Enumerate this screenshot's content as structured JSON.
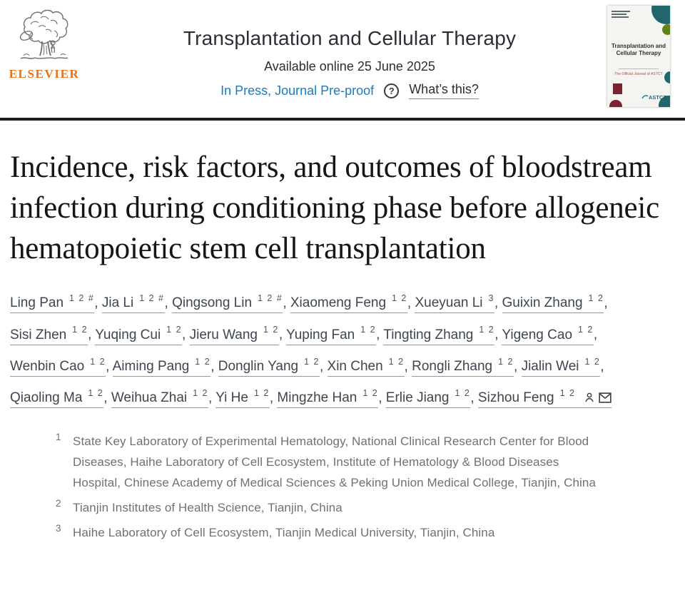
{
  "header": {
    "publisher": "ELSEVIER",
    "journal_title": "Transplantation and Cellular Therapy",
    "available_online": "Available online 25 June 2025",
    "in_press_label": "In Press, Journal Pre-proof",
    "whats_this_label": "What’s this?",
    "help_glyph": "?",
    "icons": {
      "help": "question-circle",
      "corresponding_author": "person-outline",
      "email": "envelope"
    },
    "cover": {
      "title_line1": "Transplantation and",
      "title_line2": "Cellular Therapy",
      "subtitle": "The Official Journal of ASTCT",
      "society": "ASTCT"
    },
    "colors": {
      "elsevier_orange": "#e9711c",
      "link_blue": "#1a7dc0",
      "cover_teal": "#20666c",
      "cover_green": "#66801f",
      "cover_red": "#7c2230"
    }
  },
  "article": {
    "title": "Incidence, risk factors, and outcomes of bloodstream infection during conditioning phase before allogeneic hematopoietic stem cell transplantation",
    "authors": [
      {
        "name": "Ling Pan",
        "sup": "1 2 #"
      },
      {
        "name": "Jia Li",
        "sup": "1 2 #"
      },
      {
        "name": "Qingsong Lin",
        "sup": "1 2 #"
      },
      {
        "name": "Xiaomeng Feng",
        "sup": "1 2"
      },
      {
        "name": "Xueyuan Li",
        "sup": "3"
      },
      {
        "name": "Guixin Zhang",
        "sup": "1 2",
        "br": true
      },
      {
        "name": "Sisi Zhen",
        "sup": "1 2"
      },
      {
        "name": "Yuqing Cui",
        "sup": "1 2"
      },
      {
        "name": "Jieru Wang",
        "sup": "1 2"
      },
      {
        "name": "Yuping Fan",
        "sup": "1 2"
      },
      {
        "name": "Tingting Zhang",
        "sup": "1 2"
      },
      {
        "name": "Yigeng Cao",
        "sup": "1 2",
        "br": true
      },
      {
        "name": "Wenbin Cao",
        "sup": "1 2"
      },
      {
        "name": "Aiming Pang",
        "sup": "1 2"
      },
      {
        "name": "Donglin Yang",
        "sup": "1 2"
      },
      {
        "name": "Xin Chen",
        "sup": "1 2"
      },
      {
        "name": "Rongli Zhang",
        "sup": "1 2"
      },
      {
        "name": "Jialin Wei",
        "sup": "1 2",
        "br": true
      },
      {
        "name": "Qiaoling Ma",
        "sup": "1 2"
      },
      {
        "name": "Weihua Zhai",
        "sup": "1 2"
      },
      {
        "name": "Yi He",
        "sup": "1 2"
      },
      {
        "name": "Mingzhe Han",
        "sup": "1 2"
      },
      {
        "name": "Erlie Jiang",
        "sup": "1 2"
      },
      {
        "name": "Sizhou Feng",
        "sup": "1 2",
        "corresponding": true
      }
    ],
    "affiliations": [
      {
        "num": "1",
        "text": "State Key Laboratory of Experimental Hematology, National Clinical Research Center for Blood Diseases, Haihe Laboratory of Cell Ecosystem, Institute of Hematology & Blood Diseases Hospital, Chinese Academy of Medical Sciences & Peking Union Medical College, Tianjin, China"
      },
      {
        "num": "2",
        "text": "Tianjin Institutes of Health Science, Tianjin, China"
      },
      {
        "num": "3",
        "text": "Haihe Laboratory of Cell Ecosystem, Tianjin Medical University, Tianjin, China"
      }
    ]
  }
}
